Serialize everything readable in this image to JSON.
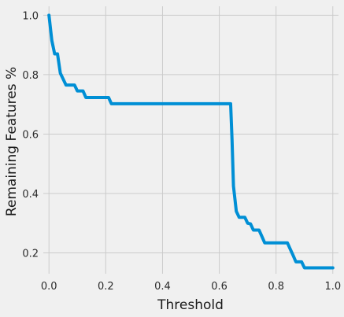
{
  "chart_data": {
    "type": "line",
    "title": "",
    "xlabel": "Threshold",
    "ylabel": "Remaining Features %",
    "xlim": [
      -0.02,
      1.02
    ],
    "ylim": [
      0.13,
      1.03
    ],
    "xticks": [
      0.0,
      0.2,
      0.4,
      0.6,
      0.8,
      1.0
    ],
    "xtick_labels": [
      "0.0",
      "0.2",
      "0.4",
      "0.6",
      "0.8",
      "1.0"
    ],
    "yticks": [
      0.2,
      0.4,
      0.6,
      0.8,
      1.0
    ],
    "ytick_labels": [
      "0.2",
      "0.4",
      "0.6",
      "0.8",
      "1.0"
    ],
    "grid": true,
    "line_color": "#008fd5",
    "series": [
      {
        "x": [
          0.0,
          0.01,
          0.02,
          0.03,
          0.04,
          0.05,
          0.06,
          0.07,
          0.08,
          0.09,
          0.1,
          0.11,
          0.12,
          0.13,
          0.14,
          0.15,
          0.16,
          0.17,
          0.18,
          0.19,
          0.2,
          0.21,
          0.22,
          0.23,
          0.24,
          0.25,
          0.3,
          0.35,
          0.4,
          0.45,
          0.5,
          0.55,
          0.6,
          0.63,
          0.64,
          0.645,
          0.65,
          0.66,
          0.67,
          0.68,
          0.69,
          0.7,
          0.71,
          0.72,
          0.73,
          0.74,
          0.75,
          0.76,
          0.77,
          0.78,
          0.79,
          0.8,
          0.81,
          0.82,
          0.83,
          0.84,
          0.85,
          0.86,
          0.87,
          0.88,
          0.89,
          0.9,
          0.95,
          1.0
        ],
        "y": [
          1.0,
          0.915,
          0.87,
          0.87,
          0.805,
          0.785,
          0.765,
          0.765,
          0.765,
          0.765,
          0.745,
          0.745,
          0.745,
          0.723,
          0.723,
          0.723,
          0.723,
          0.723,
          0.723,
          0.723,
          0.723,
          0.723,
          0.702,
          0.702,
          0.702,
          0.702,
          0.702,
          0.702,
          0.702,
          0.702,
          0.702,
          0.702,
          0.702,
          0.702,
          0.702,
          0.58,
          0.425,
          0.34,
          0.32,
          0.32,
          0.32,
          0.3,
          0.298,
          0.277,
          0.277,
          0.277,
          0.256,
          0.234,
          0.234,
          0.234,
          0.234,
          0.234,
          0.234,
          0.234,
          0.234,
          0.234,
          0.213,
          0.192,
          0.17,
          0.17,
          0.17,
          0.15,
          0.15,
          0.15
        ]
      }
    ]
  }
}
